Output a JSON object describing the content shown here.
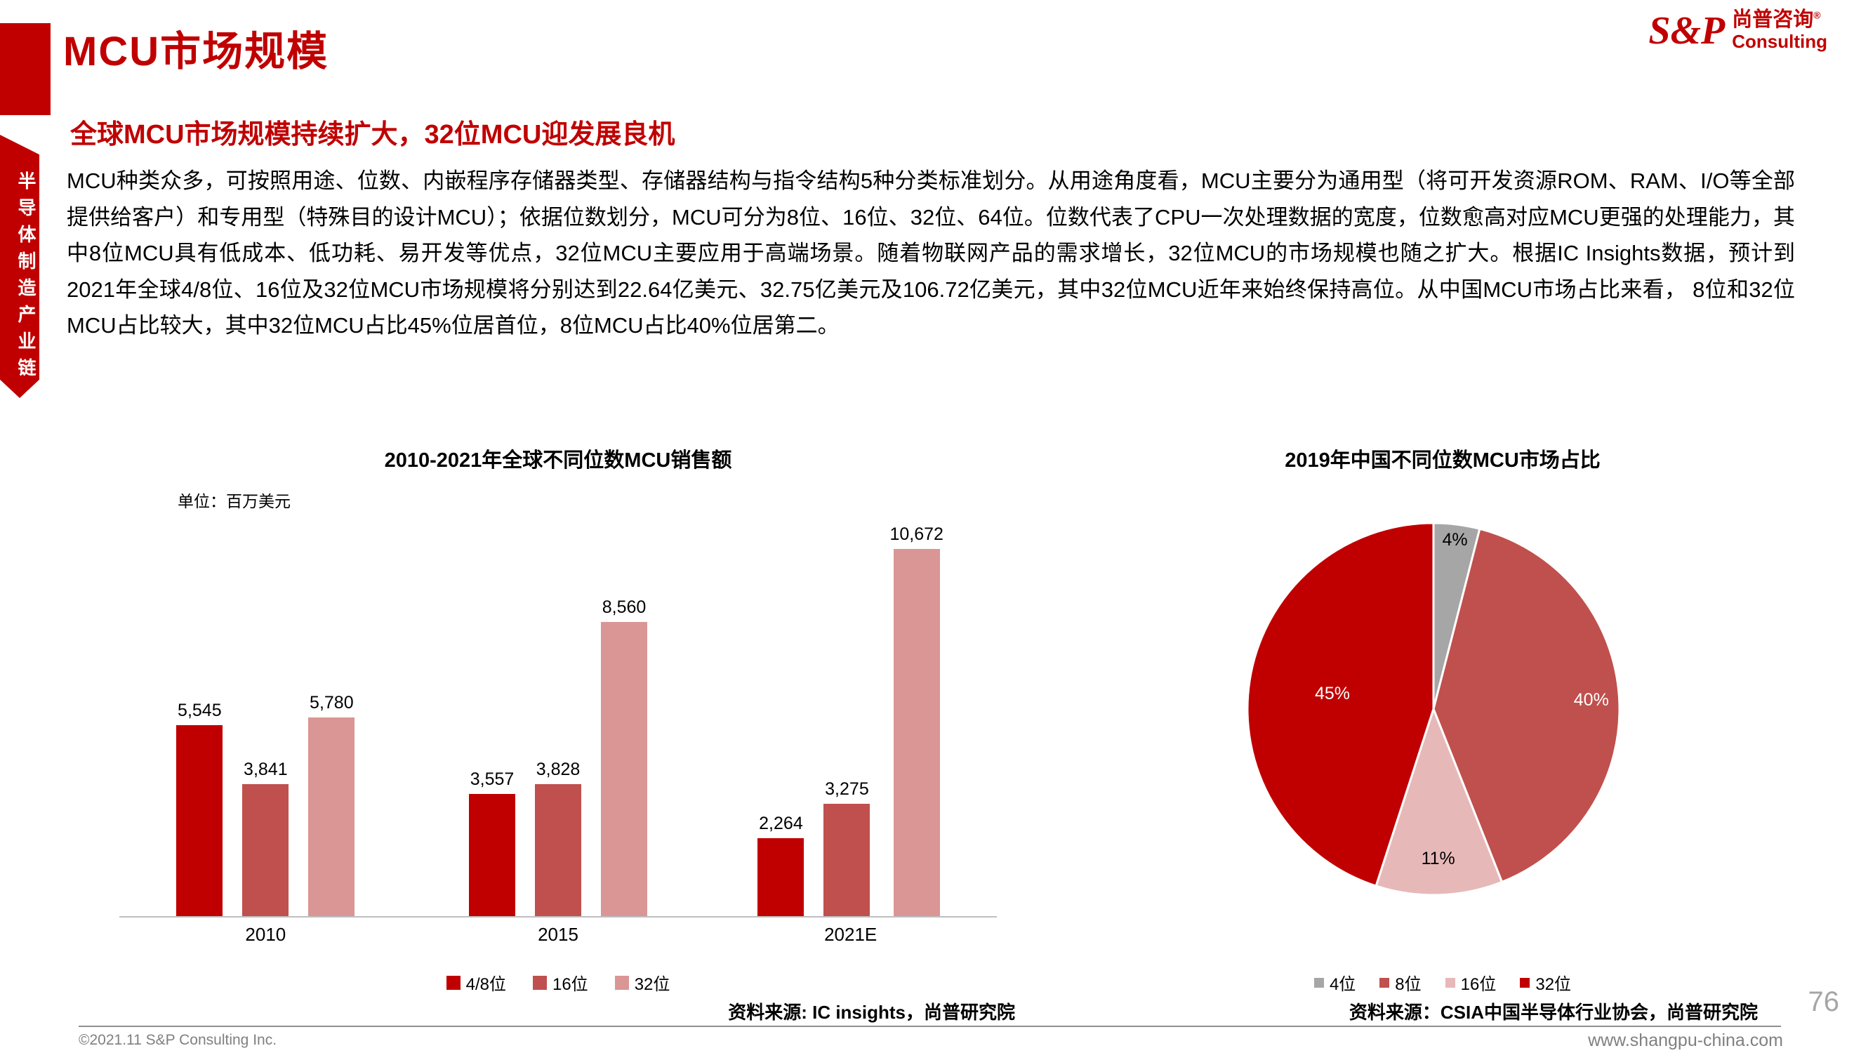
{
  "sidebar": {
    "vertical_text": "半导体制造产业链"
  },
  "header": {
    "title": "MCU市场规模",
    "subtitle": "全球MCU市场规模持续扩大，32位MCU迎发展良机"
  },
  "logo": {
    "sp": "S&P",
    "cn": "尚普咨询",
    "reg": "®",
    "sub": "Consulting"
  },
  "body": {
    "paragraph": "MCU种类众多，可按照用途、位数、内嵌程序存储器类型、存储器结构与指令结构5种分类标准划分。从用途角度看，MCU主要分为通用型（将可开发资源ROM、RAM、I/O等全部提供给客户）和专用型（特殊目的设计MCU）；依据位数划分，MCU可分为8位、16位、32位、64位。位数代表了CPU一次处理数据的宽度，位数愈高对应MCU更强的处理能力，其中8位MCU具有低成本、低功耗、易开发等优点，32位MCU主要应用于高端场景。随着物联网产品的需求增长，32位MCU的市场规模也随之扩大。根据IC Insights数据，预计到2021年全球4/8位、16位及32位MCU市场规模将分别达到22.64亿美元、32.75亿美元及106.72亿美元，其中32位MCU近年来始终保持高位。从中国MCU市场占比来看， 8位和32位MCU占比较大，其中32位MCU占比45%位居首位，8位MCU占比40%位居第二。"
  },
  "chart_data": [
    {
      "type": "bar",
      "title": "2010-2021年全球不同位数MCU销售额",
      "unit_label": "单位：百万美元",
      "source": "资料来源: IC insights，尚普研究院",
      "categories": [
        "2010",
        "2015",
        "2021E"
      ],
      "series": [
        {
          "name": "4/8位",
          "color": "#C00000",
          "values": [
            5545,
            3557,
            2264
          ]
        },
        {
          "name": "16位",
          "color": "#C0504D",
          "values": [
            3841,
            3828,
            3275
          ]
        },
        {
          "name": "32位",
          "color": "#D99694",
          "values": [
            5780,
            8560,
            10672
          ]
        }
      ],
      "ylim": [
        0,
        10672
      ],
      "grid": false,
      "legend_position": "bottom"
    },
    {
      "type": "pie",
      "title": "2019年中国不同位数MCU市场占比",
      "source": "资料来源：CSIA中国半导体行业协会，尚普研究院",
      "labels": [
        "4位",
        "8位",
        "16位",
        "32位"
      ],
      "values": [
        4,
        40,
        11,
        45
      ],
      "value_labels": [
        "4%",
        "40%",
        "11%",
        "45%"
      ],
      "colors": [
        "#A6A6A6",
        "#C0504D",
        "#E6B9B8",
        "#C00000"
      ],
      "label_colors": [
        "#000000",
        "#FFFFFF",
        "#000000",
        "#FFFFFF"
      ],
      "label_radius": [
        0.92,
        0.85,
        0.8,
        0.55
      ],
      "start_angle_deg": -90,
      "direction": "clockwise",
      "legend_position": "bottom"
    }
  ],
  "footer": {
    "copyright": "©2021.11  S&P Consulting Inc.",
    "website": "www.shangpu-china.com",
    "page_number": "76"
  },
  "colors": {
    "brand_red": "#C00000",
    "axis_gray": "#BFBFBF",
    "footer_gray": "#808080"
  }
}
